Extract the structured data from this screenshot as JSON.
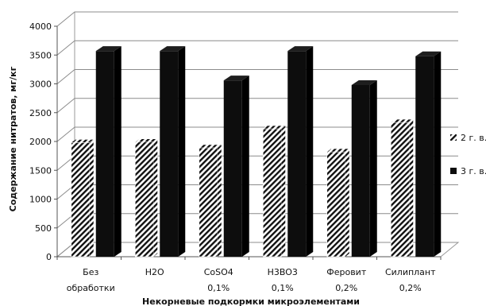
{
  "chart_data": {
    "type": "bar",
    "style": "3d-clustered-column",
    "title": "",
    "xlabel": "Некорневые подкормки микроэлементами",
    "ylabel": "Содержание нитратов, мг/кг",
    "categories": [
      [
        "Без",
        "обработки"
      ],
      [
        "H2O"
      ],
      [
        "CoSO4",
        "0,1%"
      ],
      [
        "H3BO3",
        "0,1%"
      ],
      [
        "Феровит",
        "0,2%"
      ],
      [
        "Силиплант",
        "0,2%"
      ]
    ],
    "series": [
      {
        "name": "2 г. в.",
        "values": [
          1980,
          1990,
          1890,
          2220,
          1820,
          2330
        ],
        "pattern": "diagonal-hatch",
        "color": "#111111"
      },
      {
        "name": "3 г. в.",
        "values": [
          3570,
          3570,
          3060,
          3570,
          2980,
          3480
        ],
        "pattern": "solid",
        "color": "#0b0b0b"
      }
    ],
    "ylim": [
      0,
      4000
    ],
    "yticks": [
      "0",
      "500",
      "1000",
      "1500",
      "2000",
      "2500",
      "3000",
      "3500",
      "4000"
    ],
    "grid": true,
    "legend_position": "right"
  }
}
